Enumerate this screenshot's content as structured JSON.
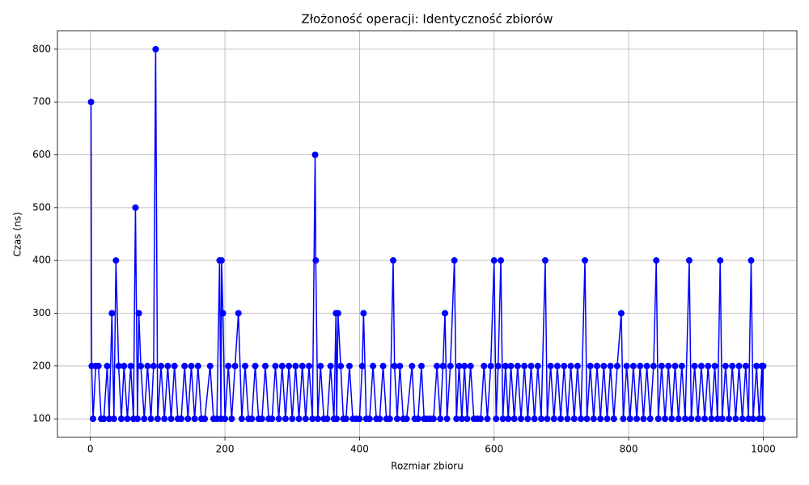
{
  "chart_data": {
    "type": "line",
    "title": "Złożoność operacji: Identyczność zbiorów",
    "x_label": "Rozmiar zbioru",
    "y_label": "Czas (ns)",
    "color": "#0000ff",
    "grid": true,
    "marker": "o",
    "xlim": [
      -48.95,
      1049.95
    ],
    "ylim": [
      65,
      835
    ],
    "xticks": [
      0,
      200,
      400,
      600,
      800,
      1000
    ],
    "yticks": [
      100,
      200,
      300,
      400,
      500,
      600,
      700,
      800
    ],
    "x": [
      1,
      2,
      4,
      8,
      12,
      16,
      20,
      25,
      28,
      32,
      35,
      38,
      42,
      46,
      50,
      55,
      60,
      64,
      67,
      70,
      72,
      75,
      80,
      85,
      90,
      94,
      97,
      100,
      105,
      110,
      115,
      120,
      125,
      130,
      135,
      140,
      145,
      150,
      155,
      160,
      165,
      170,
      178,
      183,
      188,
      192,
      194,
      195,
      197,
      200,
      205,
      210,
      215,
      220,
      225,
      230,
      235,
      240,
      245,
      250,
      255,
      260,
      265,
      270,
      275,
      280,
      285,
      290,
      295,
      300,
      305,
      310,
      315,
      320,
      325,
      330,
      334,
      335,
      338,
      342,
      347,
      352,
      357,
      362,
      365,
      366,
      368,
      372,
      376,
      380,
      385,
      390,
      395,
      400,
      404,
      406,
      410,
      415,
      420,
      425,
      430,
      435,
      440,
      445,
      450,
      452,
      456,
      460,
      465,
      470,
      478,
      482,
      487,
      492,
      496,
      500,
      505,
      510,
      515,
      520,
      524,
      527,
      530,
      535,
      541,
      544,
      548,
      552,
      556,
      560,
      565,
      570,
      575,
      580,
      585,
      590,
      595,
      600,
      603,
      606,
      610,
      613,
      617,
      621,
      625,
      630,
      635,
      640,
      645,
      650,
      655,
      660,
      665,
      670,
      676,
      679,
      684,
      689,
      694,
      699,
      704,
      709,
      714,
      719,
      724,
      729,
      735,
      738,
      743,
      748,
      753,
      758,
      763,
      768,
      773,
      778,
      783,
      789,
      792,
      797,
      802,
      807,
      812,
      817,
      822,
      827,
      832,
      837,
      841,
      844,
      849,
      854,
      859,
      864,
      869,
      874,
      879,
      884,
      890,
      893,
      898,
      903,
      908,
      913,
      918,
      923,
      928,
      932,
      936,
      939,
      944,
      949,
      954,
      959,
      964,
      969,
      974,
      978,
      982,
      985,
      990,
      994,
      998,
      999,
      1000
    ],
    "values": [
      700,
      200,
      100,
      200,
      200,
      100,
      100,
      200,
      100,
      300,
      100,
      400,
      200,
      100,
      200,
      100,
      200,
      100,
      500,
      100,
      300,
      200,
      100,
      200,
      100,
      200,
      800,
      100,
      200,
      100,
      200,
      100,
      200,
      100,
      100,
      200,
      100,
      200,
      100,
      200,
      100,
      100,
      200,
      100,
      100,
      400,
      100,
      400,
      300,
      100,
      200,
      100,
      200,
      300,
      100,
      200,
      100,
      100,
      200,
      100,
      100,
      200,
      100,
      100,
      200,
      100,
      200,
      100,
      200,
      100,
      200,
      100,
      200,
      100,
      200,
      100,
      600,
      400,
      100,
      200,
      100,
      100,
      200,
      100,
      300,
      100,
      300,
      200,
      100,
      100,
      200,
      100,
      100,
      100,
      200,
      300,
      100,
      100,
      200,
      100,
      100,
      200,
      100,
      100,
      400,
      200,
      100,
      200,
      100,
      100,
      200,
      100,
      100,
      200,
      100,
      100,
      100,
      100,
      200,
      100,
      200,
      300,
      100,
      200,
      400,
      100,
      200,
      100,
      200,
      100,
      200,
      100,
      100,
      100,
      200,
      100,
      200,
      400,
      100,
      200,
      400,
      100,
      200,
      100,
      200,
      100,
      200,
      100,
      200,
      100,
      200,
      100,
      200,
      100,
      400,
      100,
      200,
      100,
      200,
      100,
      200,
      100,
      200,
      100,
      200,
      100,
      400,
      100,
      200,
      100,
      200,
      100,
      200,
      100,
      200,
      100,
      200,
      300,
      100,
      200,
      100,
      200,
      100,
      200,
      100,
      200,
      100,
      200,
      400,
      100,
      200,
      100,
      200,
      100,
      200,
      100,
      200,
      100,
      400,
      100,
      200,
      100,
      200,
      100,
      200,
      100,
      200,
      100,
      400,
      100,
      200,
      100,
      200,
      100,
      200,
      100,
      200,
      100,
      400,
      100,
      200,
      100,
      200,
      100,
      200
    ]
  }
}
